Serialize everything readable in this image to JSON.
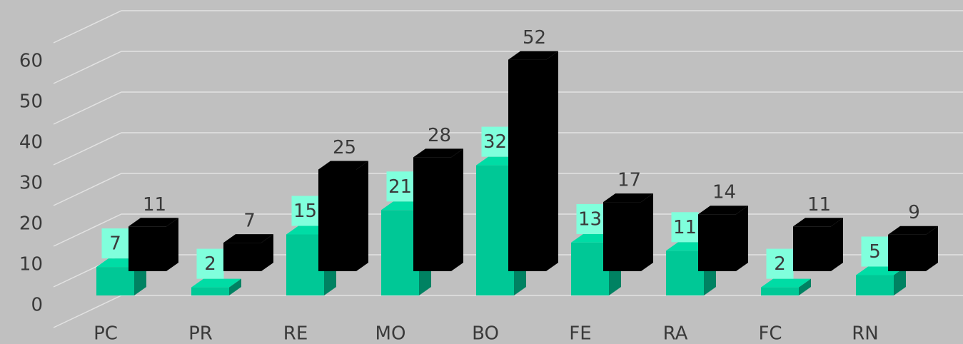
{
  "chart_data": {
    "type": "bar3d",
    "categories": [
      "PC",
      "PR",
      "RE",
      "MO",
      "BO",
      "FE",
      "RA",
      "FC",
      "RN"
    ],
    "series": [
      {
        "color": "#00c896",
        "values": [
          7,
          2,
          15,
          21,
          32,
          13,
          11,
          2,
          5
        ]
      },
      {
        "color": "#000000",
        "values": [
          11,
          7,
          25,
          28,
          52,
          17,
          14,
          11,
          9
        ]
      }
    ],
    "ylim": [
      0,
      70
    ],
    "yticks": [
      0,
      10,
      20,
      30,
      40,
      50,
      60
    ],
    "grid": true
  }
}
